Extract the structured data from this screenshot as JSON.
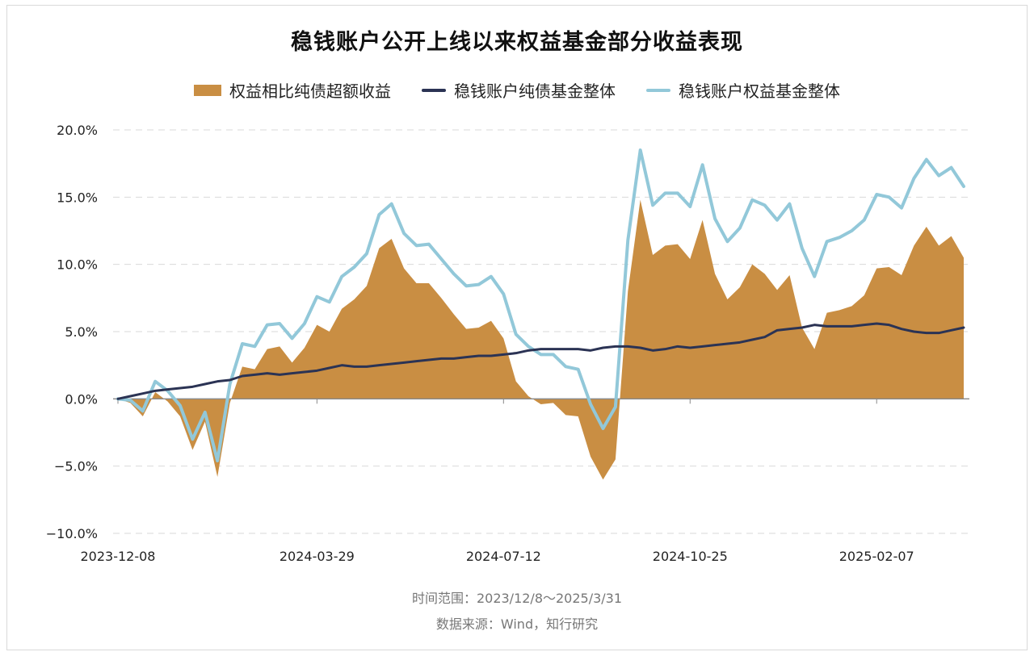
{
  "title": "稳钱账户公开上线以来权益基金部分收益表现",
  "footer": {
    "time_range": "时间范围：2023/12/8～2025/3/31",
    "source": "数据来源：Wind，知行研究"
  },
  "colors": {
    "excess_area": "#C98E43",
    "bond_line": "#2B3354",
    "equity_line": "#92C8D9",
    "grid": "#d9d9d9",
    "axis": "#888888",
    "text": "#222222"
  },
  "chart_data": {
    "type": "line",
    "title": "稳钱账户公开上线以来权益基金部分收益表现",
    "xlabel": "",
    "ylabel": "",
    "ylim": [
      -10,
      20
    ],
    "yticks": [
      -10,
      -5,
      0,
      5,
      10,
      15,
      20
    ],
    "ytick_labels": [
      "−10.0%",
      "−5.0%",
      "0.0%",
      "5.0%",
      "10.0%",
      "15.0%",
      "20.0%"
    ],
    "xtick_labels": [
      "2023-12-08",
      "2024-03-29",
      "2024-07-12",
      "2024-10-25",
      "2025-02-07"
    ],
    "xtick_indices": [
      0,
      16,
      31,
      46,
      61
    ],
    "grid": true,
    "legend_position": "top",
    "x": [
      "2023-12-08",
      "2023-12-15",
      "2023-12-22",
      "2023-12-29",
      "2024-01-05",
      "2024-01-12",
      "2024-01-19",
      "2024-01-26",
      "2024-02-02",
      "2024-02-09",
      "2024-02-23",
      "2024-03-01",
      "2024-03-08",
      "2024-03-15",
      "2024-03-22",
      "2024-03-29",
      "2024-04-03",
      "2024-04-12",
      "2024-04-19",
      "2024-04-26",
      "2024-04-30",
      "2024-05-10",
      "2024-05-17",
      "2024-05-24",
      "2024-05-31",
      "2024-06-07",
      "2024-06-14",
      "2024-06-21",
      "2024-06-28",
      "2024-07-05",
      "2024-07-12",
      "2024-07-19",
      "2024-07-26",
      "2024-08-02",
      "2024-08-09",
      "2024-08-16",
      "2024-08-23",
      "2024-08-30",
      "2024-09-06",
      "2024-09-13",
      "2024-09-20",
      "2024-09-27",
      "2024-09-30",
      "2024-10-11",
      "2024-10-18",
      "2024-10-25",
      "2024-11-01",
      "2024-11-08",
      "2024-11-15",
      "2024-11-22",
      "2024-11-29",
      "2024-12-06",
      "2024-12-13",
      "2024-12-20",
      "2024-12-27",
      "2025-01-03",
      "2025-01-10",
      "2025-01-17",
      "2025-01-24",
      "2025-01-27",
      "2025-02-07",
      "2025-02-14",
      "2025-02-21",
      "2025-02-28",
      "2025-03-07",
      "2025-03-14",
      "2025-03-21",
      "2025-03-28",
      "2025-03-31"
    ],
    "series": [
      {
        "name": "权益相比纯债超额收益",
        "kind": "area",
        "values": [
          0,
          -0.3,
          -1.3,
          0.5,
          -0.2,
          -1.3,
          -3.8,
          -1.7,
          -5.8,
          -0.3,
          2.4,
          2.2,
          3.7,
          3.9,
          2.7,
          3.8,
          5.5,
          5.0,
          6.7,
          7.4,
          8.4,
          11.2,
          11.9,
          9.7,
          8.6,
          8.6,
          7.5,
          6.3,
          5.2,
          5.3,
          5.8,
          4.5,
          1.3,
          0.2,
          -0.4,
          -0.3,
          -1.2,
          -1.3,
          -4.3,
          -6.0,
          -4.5,
          8.0,
          14.8,
          10.7,
          11.4,
          11.5,
          10.4,
          13.3,
          9.3,
          7.4,
          8.3,
          10.0,
          9.3,
          8.1,
          9.2,
          5.3,
          3.7,
          6.4,
          6.6,
          6.9,
          7.7,
          9.7,
          9.8,
          9.2,
          11.4,
          12.8,
          11.4,
          12.1,
          10.5
        ]
      },
      {
        "name": "稳钱账户纯债基金整体",
        "kind": "line",
        "values": [
          0,
          0.2,
          0.4,
          0.6,
          0.7,
          0.8,
          0.9,
          1.1,
          1.3,
          1.4,
          1.7,
          1.8,
          1.9,
          1.8,
          1.9,
          2.0,
          2.1,
          2.3,
          2.5,
          2.4,
          2.4,
          2.5,
          2.6,
          2.7,
          2.8,
          2.9,
          3.0,
          3.0,
          3.1,
          3.2,
          3.2,
          3.3,
          3.4,
          3.6,
          3.7,
          3.7,
          3.7,
          3.7,
          3.6,
          3.8,
          3.9,
          3.9,
          3.8,
          3.6,
          3.7,
          3.9,
          3.8,
          3.9,
          4.0,
          4.1,
          4.2,
          4.4,
          4.6,
          5.1,
          5.2,
          5.3,
          5.5,
          5.4,
          5.4,
          5.4,
          5.5,
          5.6,
          5.5,
          5.2,
          5.0,
          4.9,
          4.9,
          5.1,
          5.3
        ]
      },
      {
        "name": "稳钱账户权益基金整体",
        "kind": "line",
        "values": [
          0,
          -0.1,
          -0.9,
          1.3,
          0.6,
          -0.5,
          -3.0,
          -1.0,
          -4.6,
          1.1,
          4.1,
          3.9,
          5.5,
          5.6,
          4.5,
          5.6,
          7.6,
          7.2,
          9.1,
          9.8,
          10.8,
          13.7,
          14.5,
          12.3,
          11.4,
          11.5,
          10.4,
          9.3,
          8.4,
          8.5,
          9.1,
          7.8,
          4.8,
          3.9,
          3.3,
          3.3,
          2.4,
          2.2,
          -0.4,
          -2.2,
          -0.6,
          11.8,
          18.5,
          14.4,
          15.3,
          15.3,
          14.3,
          17.4,
          13.4,
          11.7,
          12.7,
          14.8,
          14.4,
          13.3,
          14.5,
          11.2,
          9.1,
          11.7,
          12.0,
          12.5,
          13.3,
          15.2,
          15.0,
          14.2,
          16.4,
          17.8,
          16.6,
          17.2,
          15.8
        ]
      }
    ]
  },
  "legend": [
    {
      "label": "权益相比纯债超额收益",
      "kind": "area"
    },
    {
      "label": "稳钱账户纯债基金整体",
      "kind": "bond"
    },
    {
      "label": "稳钱账户权益基金整体",
      "kind": "equity"
    }
  ]
}
